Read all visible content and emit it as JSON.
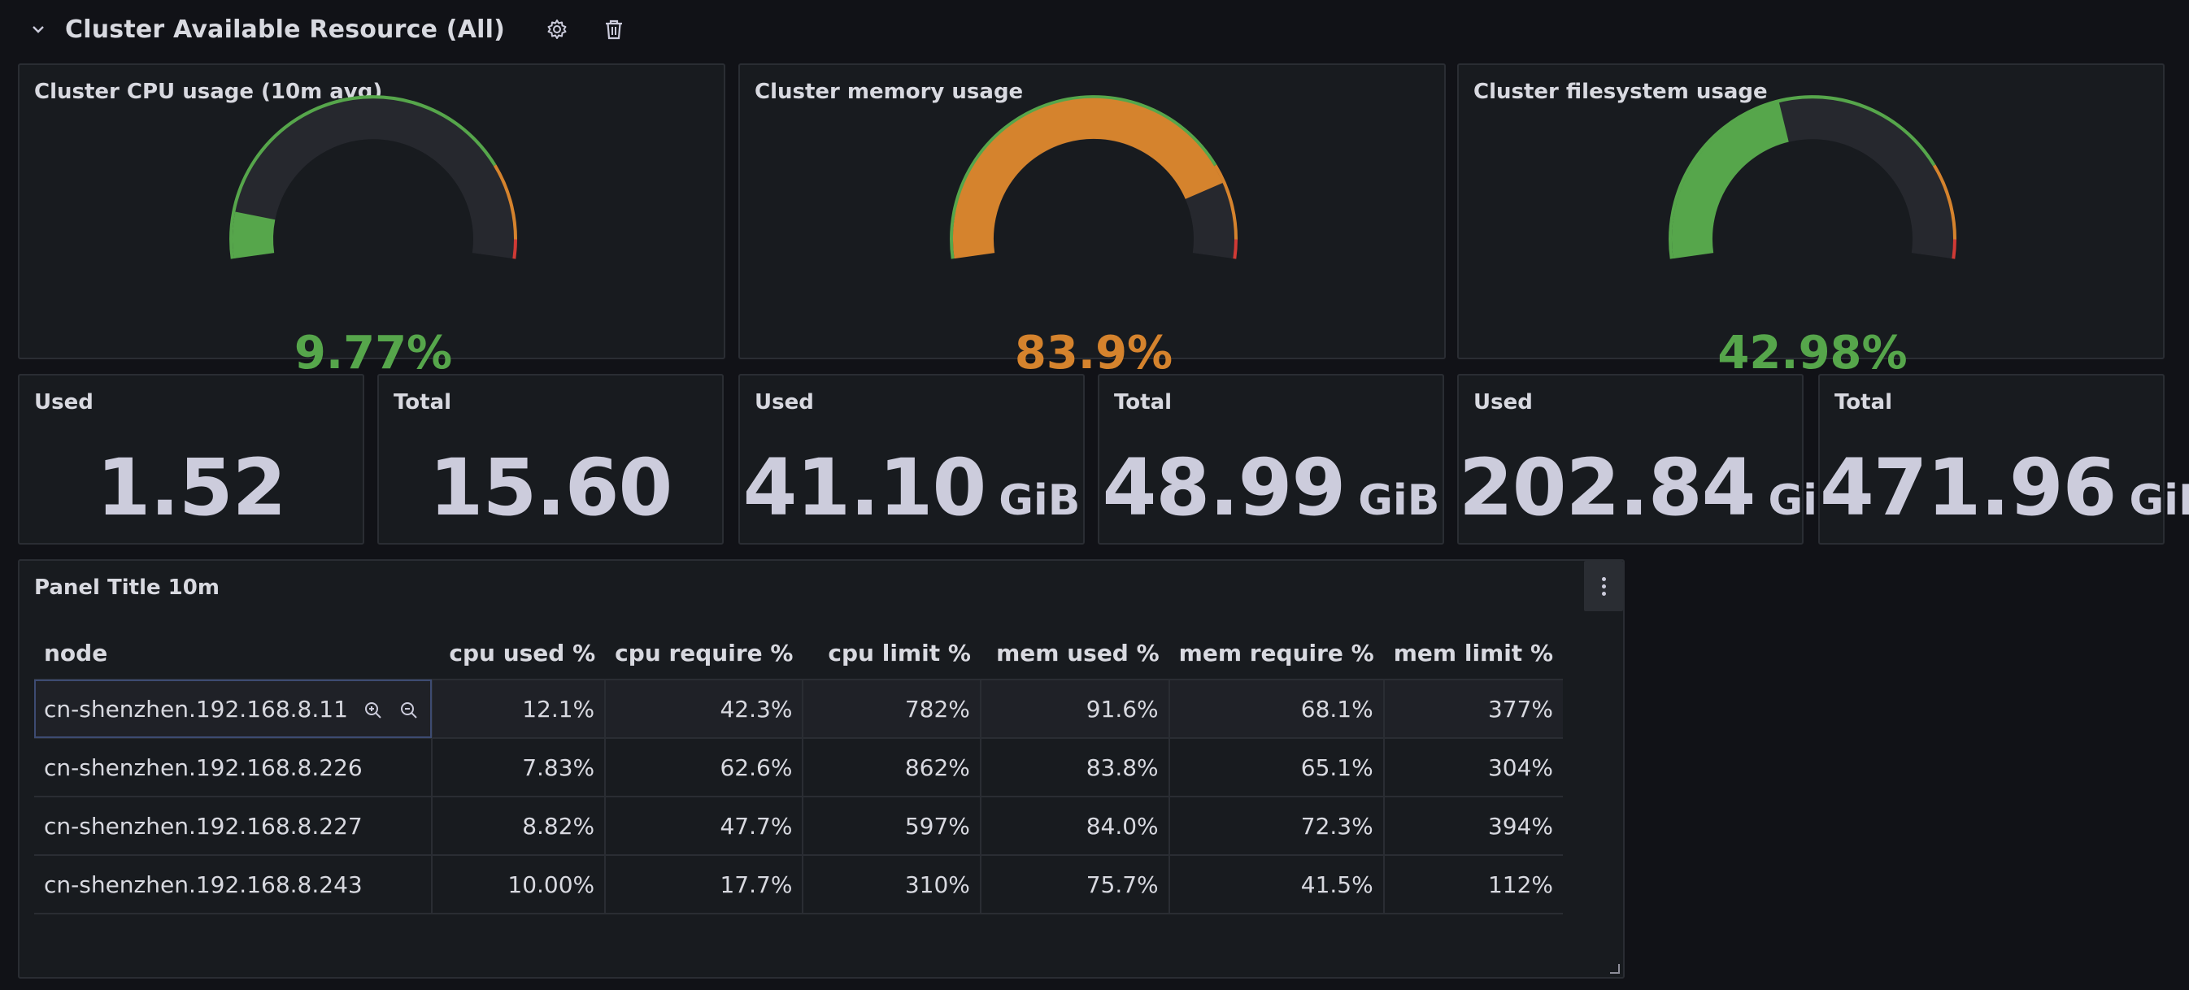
{
  "row": {
    "title": "Cluster Available Resource (All)"
  },
  "gauges": [
    {
      "title": "Cluster CPU usage (10m avg)",
      "value_text": "9.77%",
      "value": 9.77,
      "color": "#56a64b"
    },
    {
      "title": "Cluster memory usage",
      "value_text": "83.9%",
      "value": 83.9,
      "color": "#d5832d"
    },
    {
      "title": "Cluster filesystem usage",
      "value_text": "42.98%",
      "value": 42.98,
      "color": "#56a64b"
    }
  ],
  "thresholds": {
    "green": "#56a64b",
    "orange": "#d5832d",
    "red": "#d03a35",
    "orange_from": 80,
    "red_from": 96
  },
  "stats": [
    {
      "title": "Used",
      "value": "1.52",
      "unit": ""
    },
    {
      "title": "Total",
      "value": "15.60",
      "unit": ""
    },
    {
      "title": "Used",
      "value": "41.10",
      "unit": "GiB"
    },
    {
      "title": "Total",
      "value": "48.99",
      "unit": "GiB"
    },
    {
      "title": "Used",
      "value": "202.84",
      "unit": "GiB"
    },
    {
      "title": "Total",
      "value": "471.96",
      "unit": "GiB"
    }
  ],
  "table_panel": {
    "title": "Panel Title 10m",
    "columns": [
      "node",
      "cpu used %",
      "cpu require %",
      "cpu limit %",
      "mem used %",
      "mem require %",
      "mem limit %"
    ],
    "rows": [
      [
        "cn-shenzhen.192.168.8.11",
        "12.1%",
        "42.3%",
        "782%",
        "91.6%",
        "68.1%",
        "377%"
      ],
      [
        "cn-shenzhen.192.168.8.226",
        "7.83%",
        "62.6%",
        "862%",
        "83.8%",
        "65.1%",
        "304%"
      ],
      [
        "cn-shenzhen.192.168.8.227",
        "8.82%",
        "47.7%",
        "597%",
        "84.0%",
        "72.3%",
        "394%"
      ],
      [
        "cn-shenzhen.192.168.8.243",
        "10.00%",
        "17.7%",
        "310%",
        "75.7%",
        "41.5%",
        "112%"
      ]
    ]
  },
  "icons": {
    "row_collapse": "chevron-down-icon",
    "row_settings": "gear-icon",
    "row_delete": "trash-icon",
    "panel_menu": "kebab-menu-icon",
    "filter_in": "zoom-in-icon",
    "filter_out": "zoom-out-icon"
  }
}
